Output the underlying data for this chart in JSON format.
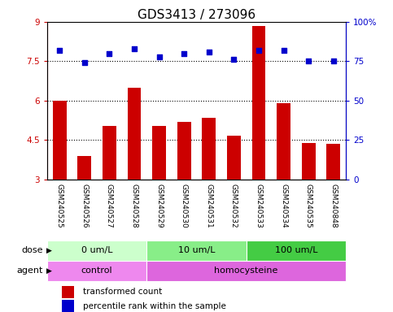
{
  "title": "GDS3413 / 273096",
  "samples": [
    "GSM240525",
    "GSM240526",
    "GSM240527",
    "GSM240528",
    "GSM240529",
    "GSM240530",
    "GSM240531",
    "GSM240532",
    "GSM240533",
    "GSM240534",
    "GSM240535",
    "GSM240848"
  ],
  "bar_values": [
    6.0,
    3.9,
    5.05,
    6.5,
    5.05,
    5.2,
    5.35,
    4.65,
    8.85,
    5.9,
    4.4,
    4.35
  ],
  "dot_values": [
    82,
    74,
    80,
    83,
    78,
    80,
    81,
    76,
    82,
    82,
    75,
    75
  ],
  "bar_color": "#cc0000",
  "dot_color": "#0000cc",
  "ylim_left": [
    3,
    9
  ],
  "ylim_right": [
    0,
    100
  ],
  "yticks_left": [
    3,
    4.5,
    6,
    7.5,
    9
  ],
  "yticks_right": [
    0,
    25,
    50,
    75,
    100
  ],
  "ytick_labels_left": [
    "3",
    "4.5",
    "6",
    "7.5",
    "9"
  ],
  "ytick_labels_right": [
    "0",
    "25",
    "50",
    "75",
    "100%"
  ],
  "hlines": [
    4.5,
    6.0,
    7.5
  ],
  "dose_groups": [
    {
      "label": "0 um/L",
      "start": 0,
      "end": 4,
      "color": "#ccffcc"
    },
    {
      "label": "10 um/L",
      "start": 4,
      "end": 8,
      "color": "#88ee88"
    },
    {
      "label": "100 um/L",
      "start": 8,
      "end": 12,
      "color": "#44cc44"
    }
  ],
  "agent_groups": [
    {
      "label": "control",
      "start": 0,
      "end": 4,
      "color": "#ee88ee"
    },
    {
      "label": "homocysteine",
      "start": 4,
      "end": 12,
      "color": "#dd66dd"
    }
  ],
  "dose_label": "dose",
  "agent_label": "agent",
  "legend_bar_label": "transformed count",
  "legend_dot_label": "percentile rank within the sample",
  "bar_bottom": 3,
  "background_color": "#ffffff",
  "sample_area_color": "#cccccc",
  "title_fontsize": 11,
  "tick_fontsize": 7.5,
  "sample_fontsize": 6.5,
  "row_fontsize": 8,
  "legend_fontsize": 7.5
}
